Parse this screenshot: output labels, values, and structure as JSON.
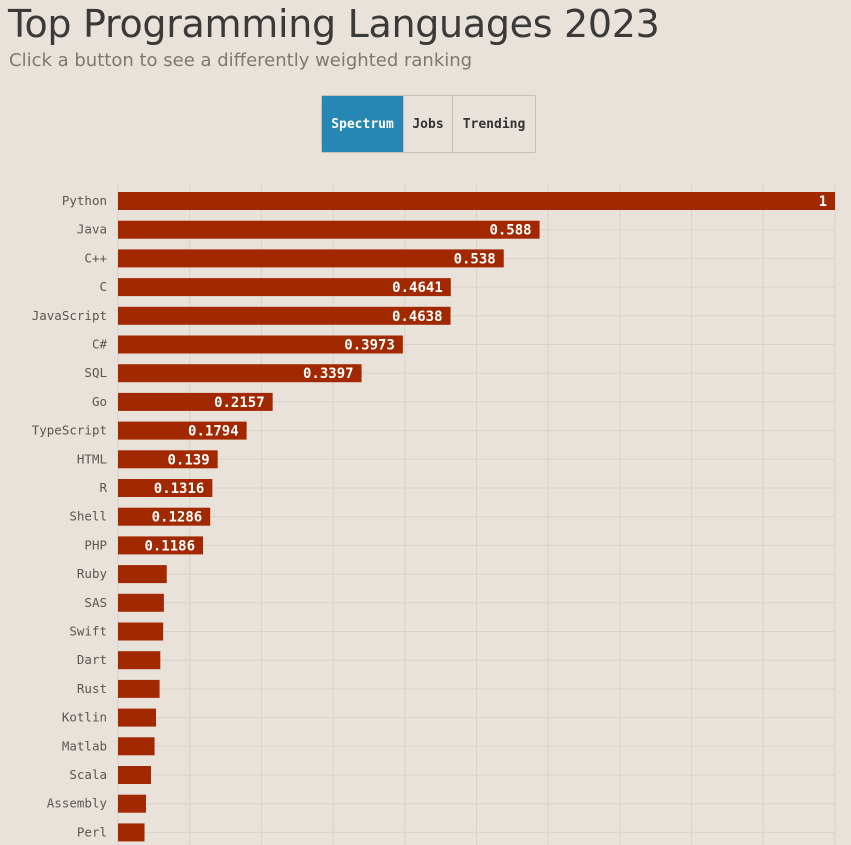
{
  "header": {
    "title": "Top Programming Languages 2023",
    "subtitle": "Click a button to see a differently weighted ranking"
  },
  "buttons": [
    {
      "label": "Spectrum",
      "active": true
    },
    {
      "label": "Jobs",
      "active": false
    },
    {
      "label": "Trending",
      "active": false
    }
  ],
  "colors": {
    "bar": "#a22800",
    "accent": "#2686b4",
    "grid": "#d9d2c9",
    "background": "#e8e2da"
  },
  "chart_data": {
    "type": "bar",
    "orientation": "horizontal",
    "title": "",
    "xlabel": "",
    "ylabel": "",
    "xlim": [
      0,
      1
    ],
    "grid": true,
    "categories": [
      "Python",
      "Java",
      "C++",
      "C",
      "JavaScript",
      "C#",
      "SQL",
      "Go",
      "TypeScript",
      "HTML",
      "R",
      "Shell",
      "PHP",
      "Ruby",
      "SAS",
      "Swift",
      "Dart",
      "Rust",
      "Kotlin",
      "Matlab",
      "Scala",
      "Assembly",
      "Perl"
    ],
    "values": [
      1,
      0.588,
      0.538,
      0.4641,
      0.4638,
      0.3973,
      0.3397,
      0.2157,
      0.1794,
      0.139,
      0.1316,
      0.1286,
      0.1186,
      0.068,
      0.064,
      0.063,
      0.059,
      0.058,
      0.053,
      0.051,
      0.046,
      0.039,
      0.037
    ],
    "value_labels": [
      "1",
      "0.588",
      "0.538",
      "0.4641",
      "0.4638",
      "0.3973",
      "0.3397",
      "0.2157",
      "0.1794",
      "0.139",
      "0.1316",
      "0.1286",
      "0.1186",
      "",
      "",
      "",
      "",
      "",
      "",
      "",
      "",
      "",
      ""
    ]
  }
}
